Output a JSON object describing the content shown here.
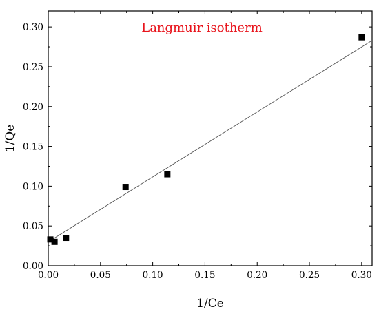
{
  "chart_data": {
    "type": "scatter",
    "title": "Langmuir isotherm",
    "title_color": "#e8141c",
    "xlabel": "1/Ce",
    "ylabel": "1/Qe",
    "xlim": [
      0.0,
      0.31
    ],
    "ylim": [
      0.0,
      0.32
    ],
    "x_ticks": [
      0.0,
      0.05,
      0.1,
      0.15,
      0.2,
      0.25,
      0.3
    ],
    "x_tick_labels": [
      "0.00",
      "0.05",
      "0.10",
      "0.15",
      "0.20",
      "0.25",
      "0.30"
    ],
    "y_ticks": [
      0.0,
      0.05,
      0.1,
      0.15,
      0.2,
      0.25,
      0.3
    ],
    "y_tick_labels": [
      "0.00",
      "0.05",
      "0.10",
      "0.15",
      "0.20",
      "0.25",
      "0.30"
    ],
    "grid": false,
    "legend": "none",
    "series": [
      {
        "marker": "square",
        "color": "#000000",
        "points": [
          {
            "x": 0.002,
            "y": 0.033
          },
          {
            "x": 0.006,
            "y": 0.03
          },
          {
            "x": 0.017,
            "y": 0.035
          },
          {
            "x": 0.074,
            "y": 0.099
          },
          {
            "x": 0.114,
            "y": 0.115
          },
          {
            "x": 0.3,
            "y": 0.287
          }
        ]
      }
    ],
    "fit_line": {
      "color": "#555555",
      "x_start": 0.0,
      "y_start": 0.03,
      "x_end": 0.31,
      "y_end": 0.283
    }
  }
}
